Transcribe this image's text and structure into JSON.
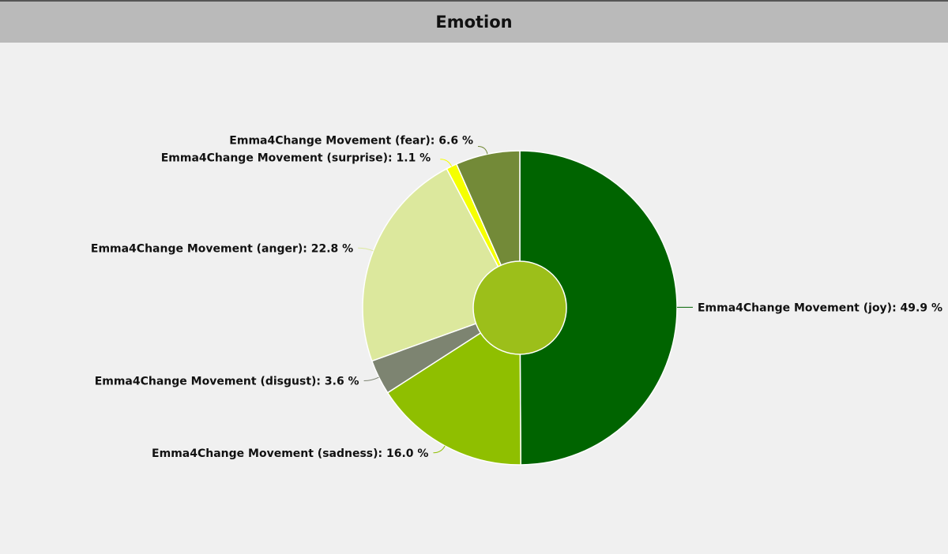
{
  "header": {
    "title": "Emotion"
  },
  "chart_data": {
    "type": "pie",
    "title": "Emotion",
    "series_name": "Emma4Change Movement",
    "slices": [
      {
        "label": "Emma4Change Movement (joy): 49.9 %",
        "category": "joy",
        "value": 49.9,
        "color": "#006400"
      },
      {
        "label": "Emma4Change Movement (sadness): 16.0 %",
        "category": "sadness",
        "value": 16.0,
        "color": "#8fbf00"
      },
      {
        "label": "Emma4Change Movement (disgust): 3.6 %",
        "category": "disgust",
        "value": 3.6,
        "color": "#7d8471"
      },
      {
        "label": "Emma4Change Movement (anger): 22.8 %",
        "category": "anger",
        "value": 22.8,
        "color": "#dce89d"
      },
      {
        "label": "Emma4Change Movement (surprise): 1.1 %",
        "category": "surprise",
        "value": 1.1,
        "color": "#f5ff00"
      },
      {
        "label": "Emma4Change Movement (fear): 6.6 %",
        "category": "fear",
        "value": 6.6,
        "color": "#738a38"
      }
    ],
    "center_color": "#9cbf1a"
  }
}
